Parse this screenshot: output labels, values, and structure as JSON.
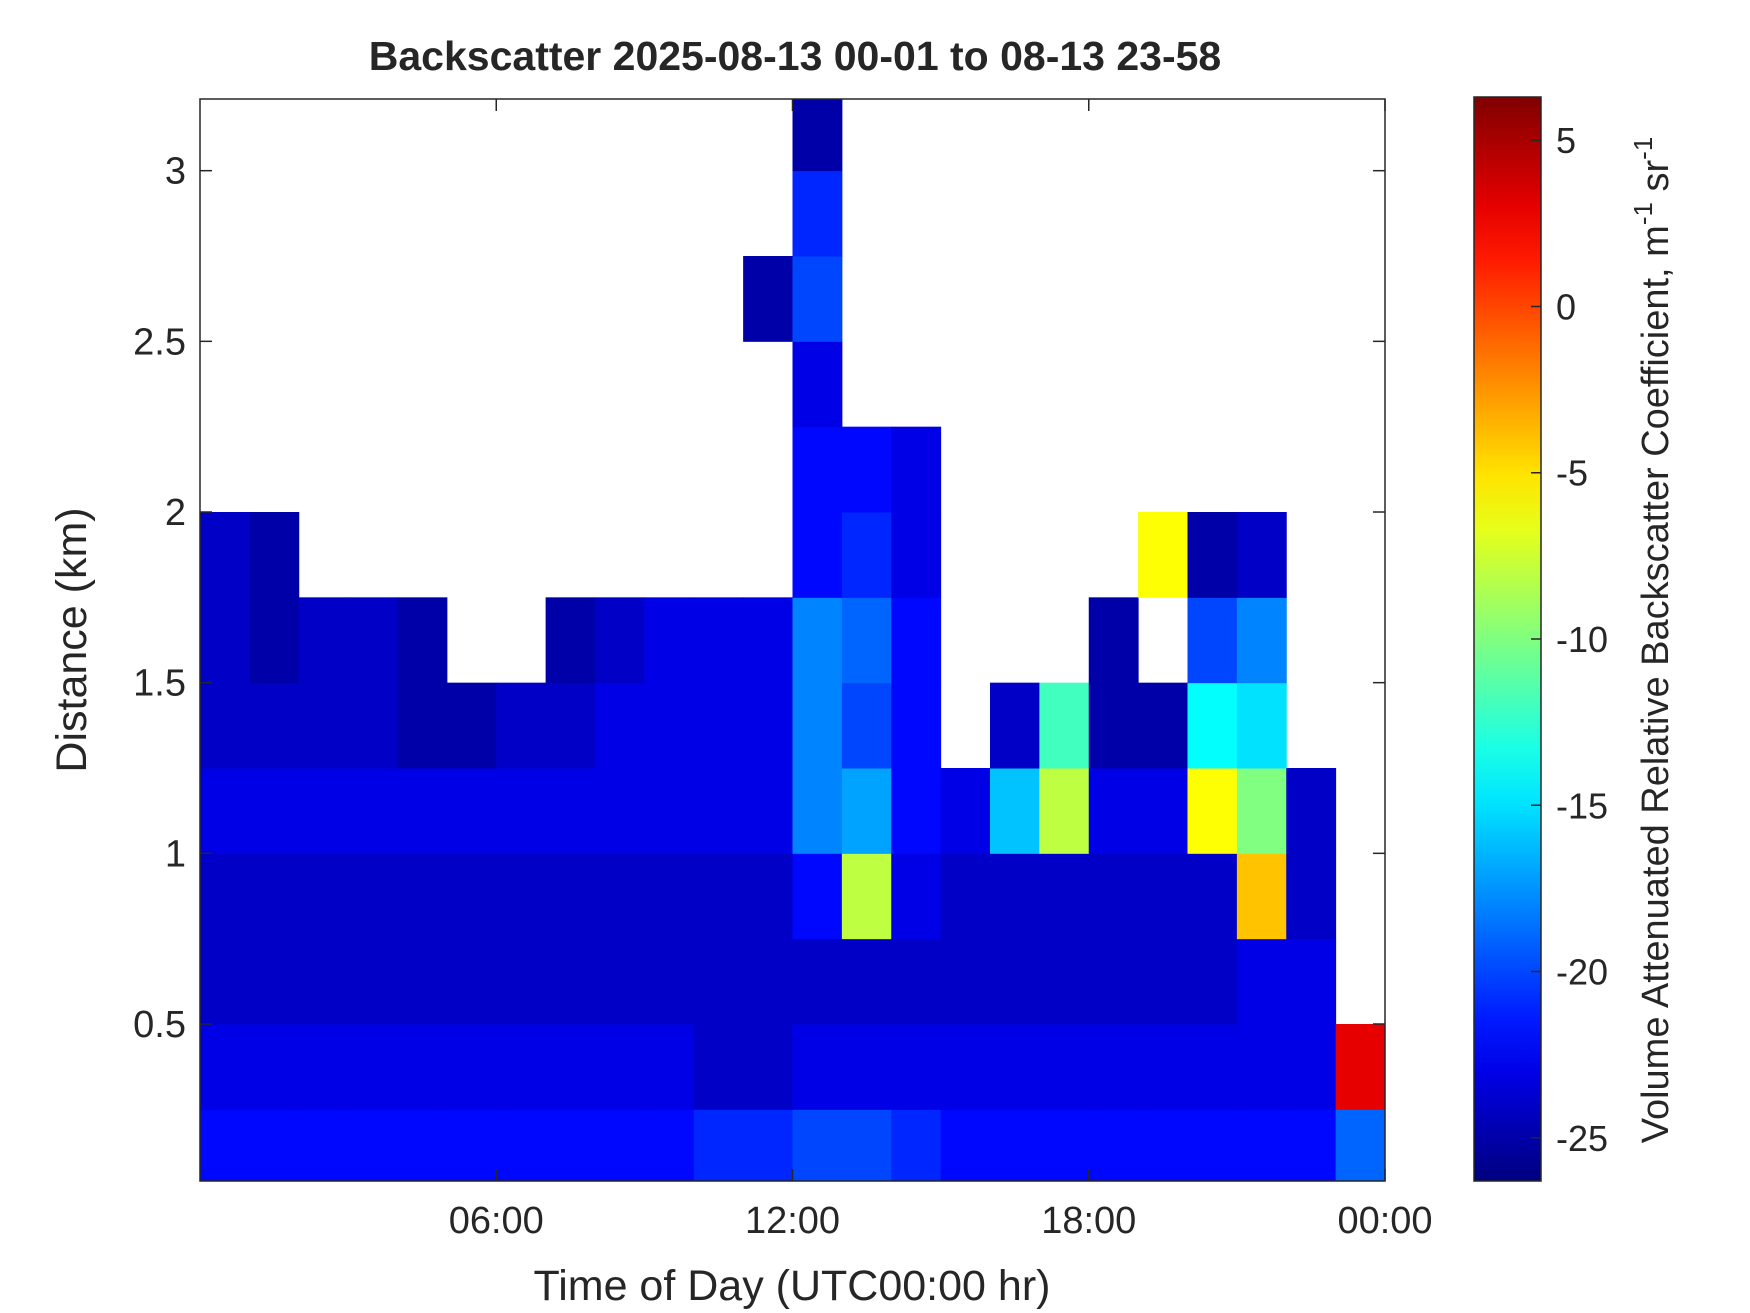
{
  "chart_data": {
    "type": "heatmap",
    "title": "Backscatter 2025-08-13 00-01 to 08-13 23-58",
    "xlabel": "Time of Day (UTC00:00 hr)",
    "ylabel": "Distance (km)",
    "colorbar_label": [
      "Volume Attenuated Relative Backscatter Coefficient, m",
      "-1",
      " sr",
      "-1"
    ],
    "colormap": "jet",
    "x": [
      0.5,
      1.5,
      2.5,
      3.5,
      4.5,
      5.5,
      6.5,
      7.5,
      8.5,
      9.5,
      10.5,
      11.5,
      12.5,
      13.5,
      14.5,
      15.5,
      16.5,
      17.5,
      18.5,
      19.5,
      20.5,
      21.5,
      22.5,
      23.5
    ],
    "y": [
      0.125,
      0.375,
      0.625,
      0.875,
      1.125,
      1.375,
      1.625,
      1.875,
      2.125,
      2.375,
      2.625,
      2.875,
      3.125
    ],
    "z": [
      [
        -22,
        -22,
        -22,
        -22,
        -22,
        -22,
        -22,
        -22,
        -22,
        -22,
        -21,
        -21,
        -20,
        -20,
        -21,
        -22,
        -22,
        -22,
        -22,
        -22,
        -22,
        -22,
        -22,
        -19
      ],
      [
        -23,
        -23,
        -23,
        -23,
        -23,
        -23,
        -23,
        -23,
        -23,
        -23,
        -24,
        -24,
        -23,
        -23,
        -23,
        -23,
        -23,
        -23,
        -23,
        -23,
        -23,
        -23,
        -23,
        3
      ],
      [
        -24,
        -24,
        -24,
        -24,
        -24,
        -24,
        -24,
        -24,
        -24,
        -24,
        -24,
        -24,
        -24,
        -24,
        -24,
        -24,
        -24,
        -24,
        -24,
        -24,
        -24,
        -23,
        -23,
        null
      ],
      [
        -24,
        -24,
        -24,
        -24,
        -24,
        -24,
        -24,
        -24,
        -24,
        -24,
        -24,
        -24,
        -22,
        -8,
        -23,
        -24,
        -24,
        -24,
        -24,
        -24,
        -24,
        -4,
        -24,
        null
      ],
      [
        -23,
        -23,
        -23,
        -23,
        -23,
        -23,
        -23,
        -23,
        -23,
        -23,
        -23,
        -23,
        -18,
        -17,
        -22,
        -23,
        -16,
        -8,
        -23,
        -23,
        -6,
        -10,
        -24,
        null
      ],
      [
        -24,
        -24,
        -24,
        -24,
        -25,
        -25,
        -24,
        -24,
        -23,
        -23,
        -23,
        -23,
        -18,
        -20,
        -22,
        null,
        -24,
        -12,
        -25,
        -25,
        -14,
        -15,
        null,
        null
      ],
      [
        -24,
        -25,
        -24,
        -24,
        -25,
        null,
        null,
        -25,
        -24,
        -23,
        -23,
        -23,
        -18,
        -19,
        -22,
        null,
        null,
        null,
        -25,
        null,
        -20,
        -18,
        null,
        null
      ],
      [
        -24,
        -25,
        null,
        null,
        null,
        null,
        null,
        null,
        null,
        null,
        null,
        null,
        -22,
        -21,
        -23,
        null,
        null,
        null,
        null,
        -6,
        -25,
        -24,
        null,
        null
      ],
      [
        null,
        null,
        null,
        null,
        null,
        null,
        null,
        null,
        null,
        null,
        null,
        null,
        -22,
        -22,
        -23,
        null,
        null,
        null,
        null,
        null,
        null,
        null,
        null,
        null
      ],
      [
        null,
        null,
        null,
        null,
        null,
        null,
        null,
        null,
        null,
        null,
        null,
        null,
        -23,
        null,
        null,
        null,
        null,
        null,
        null,
        null,
        null,
        null,
        null,
        null
      ],
      [
        null,
        null,
        null,
        null,
        null,
        null,
        null,
        null,
        null,
        null,
        null,
        -25,
        -20,
        null,
        null,
        null,
        null,
        null,
        null,
        null,
        null,
        null,
        null,
        null
      ],
      [
        null,
        null,
        null,
        null,
        null,
        null,
        null,
        null,
        null,
        null,
        null,
        null,
        -21,
        null,
        null,
        null,
        null,
        null,
        null,
        null,
        null,
        null,
        null,
        null
      ],
      [
        null,
        null,
        null,
        null,
        null,
        null,
        null,
        null,
        null,
        null,
        null,
        null,
        -25,
        null,
        null,
        null,
        null,
        null,
        null,
        null,
        null,
        null,
        null,
        null
      ]
    ],
    "xlim": [
      0,
      24
    ],
    "xticks": [
      {
        "value": 6,
        "label": "06:00"
      },
      {
        "value": 12,
        "label": "12:00"
      },
      {
        "value": 18,
        "label": "18:00"
      },
      {
        "value": 24,
        "label": "00:00"
      }
    ],
    "ylim": [
      0.04,
      3.21
    ],
    "yticks": [
      0.5,
      1,
      1.5,
      2,
      2.5,
      3
    ],
    "clim": [
      -26.3,
      6.3
    ],
    "cticks": [
      -25,
      -20,
      -15,
      -10,
      -5,
      0,
      5
    ]
  }
}
